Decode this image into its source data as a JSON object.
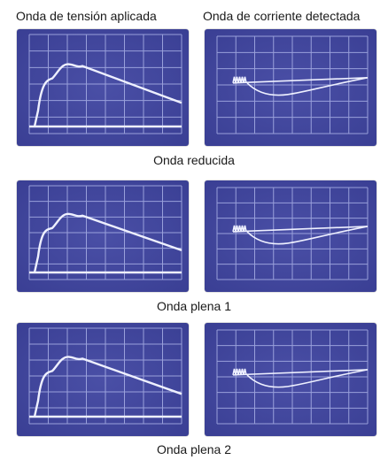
{
  "headers": {
    "left": "Onda de tensión aplicada",
    "right": "Onda de corriente detectada"
  },
  "rows": [
    {
      "caption": "Onda reducida"
    },
    {
      "caption": "Onda plena 1"
    },
    {
      "caption": "Onda plena 2"
    }
  ],
  "colors": {
    "screen": "#3a3f94",
    "screen_light": "#4a4fa6",
    "grid": "#a9b0e6",
    "trace": "#eef0ff"
  }
}
